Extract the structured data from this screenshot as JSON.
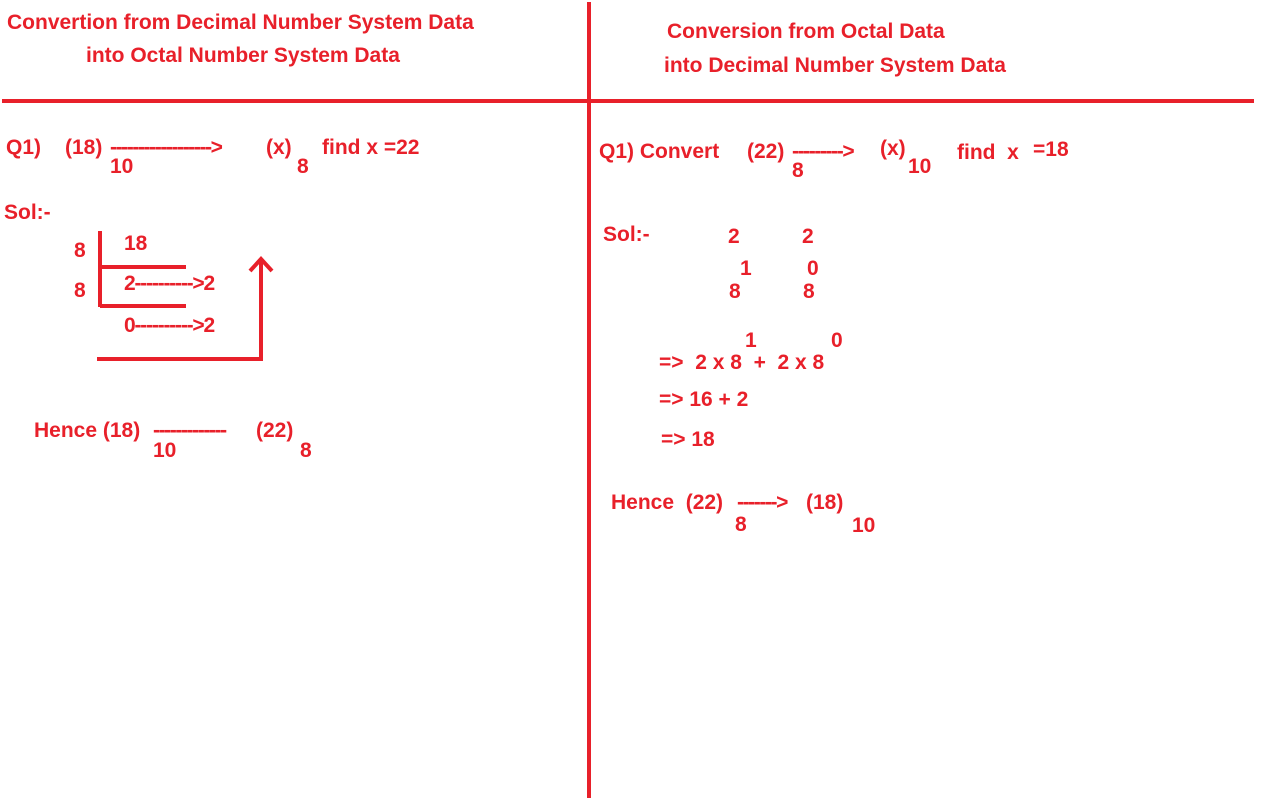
{
  "colors": {
    "ink": "#e8202a",
    "background": "#ffffff"
  },
  "left": {
    "title_line1": "Convertion from Decimal Number System Data",
    "title_line2": "into Octal Number System Data",
    "question": {
      "label": "Q1)",
      "source": "(18)",
      "source_base": "10",
      "arrow": "------------------>",
      "target": "(x)",
      "target_base": "8",
      "find": "find x =22"
    },
    "solution_label": "Sol:-",
    "division": {
      "divisors": [
        "8",
        "8"
      ],
      "dividend": "18",
      "quotient_row": "2---------->2",
      "last_row": "0---------->2"
    },
    "hence": {
      "prefix": "Hence (18)",
      "base_from": "10",
      "dashes": "-------------",
      "to": "(22)",
      "base_to": "8"
    }
  },
  "right": {
    "title_line1": "Conversion from Octal Data",
    "title_line2": "into Decimal Number System Data",
    "question": {
      "label": "Q1) Convert",
      "source": "(22)",
      "source_base": "8",
      "arrow": "--------->",
      "target": "(x)",
      "target_base": "10",
      "find": "find  x",
      "answer": "=18"
    },
    "solution_label": "Sol:-",
    "digits": [
      "2",
      "2"
    ],
    "powers": [
      "1",
      "0"
    ],
    "bases": [
      "8",
      "8"
    ],
    "step1": {
      "power_a": "1",
      "power_b": "0",
      "expr": "=>  2 x 8  +  2 x 8"
    },
    "step2": "=> 16 + 2",
    "step3": "=> 18",
    "hence": {
      "prefix": "Hence  (22)",
      "base_from": "8",
      "arrow": "------->",
      "to": "(18)",
      "base_to": "10"
    }
  }
}
